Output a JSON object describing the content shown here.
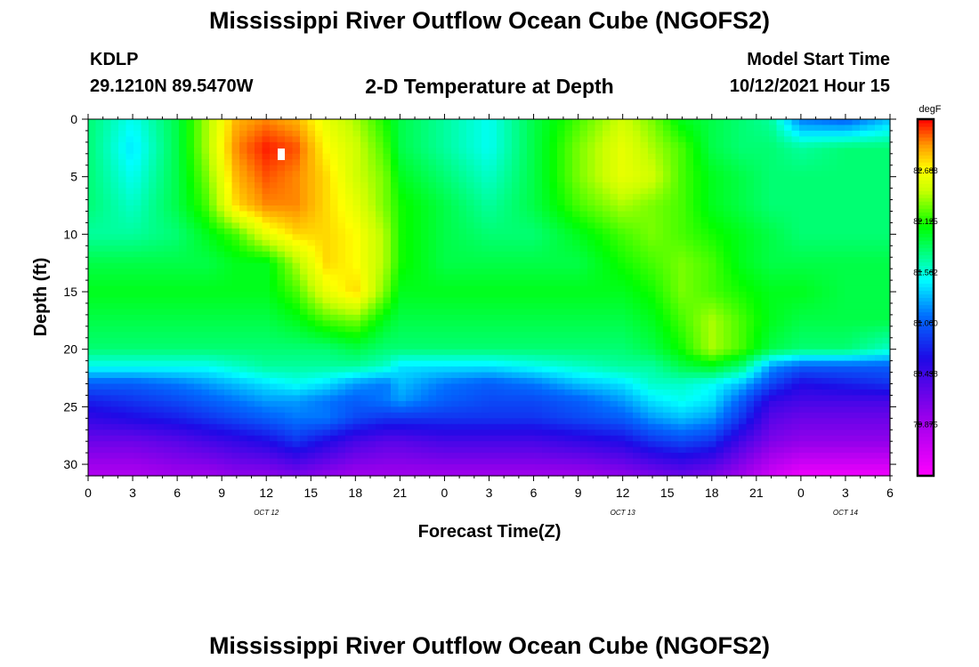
{
  "header": {
    "title": "Mississippi River Outflow Ocean Cube (NGOFS2)",
    "station": "KDLP",
    "coords": "29.1210N  89.5470W",
    "subtitle": "2-D Temperature at Depth",
    "start_label": "Model Start Time",
    "start_value": "10/12/2021 Hour 15"
  },
  "footer": {
    "title": "Mississippi River Outflow Ocean Cube (NGOFS2)"
  },
  "chart_data": {
    "type": "heatmap",
    "title": "2-D Temperature at Depth",
    "xlabel": "Forecast Time(Z)",
    "ylabel": "Depth (ft)",
    "x_unit": "hours (Z)",
    "xlim": [
      0,
      54
    ],
    "ylim": [
      0,
      31
    ],
    "y_reversed": true,
    "x_ticks": [
      {
        "h": 0,
        "label": "0"
      },
      {
        "h": 3,
        "label": "3"
      },
      {
        "h": 6,
        "label": "6"
      },
      {
        "h": 9,
        "label": "9"
      },
      {
        "h": 12,
        "label": "12"
      },
      {
        "h": 15,
        "label": "15"
      },
      {
        "h": 18,
        "label": "18"
      },
      {
        "h": 21,
        "label": "21"
      },
      {
        "h": 24,
        "label": "0"
      },
      {
        "h": 27,
        "label": "3"
      },
      {
        "h": 30,
        "label": "6"
      },
      {
        "h": 33,
        "label": "9"
      },
      {
        "h": 36,
        "label": "12"
      },
      {
        "h": 39,
        "label": "15"
      },
      {
        "h": 42,
        "label": "18"
      },
      {
        "h": 45,
        "label": "21"
      },
      {
        "h": 48,
        "label": "0"
      },
      {
        "h": 51,
        "label": "3"
      },
      {
        "h": 54,
        "label": "6"
      }
    ],
    "date_labels": [
      {
        "h": 12,
        "label": "OCT 12"
      },
      {
        "h": 36,
        "label": "OCT 13"
      },
      {
        "h": 51,
        "label": "OCT 14"
      }
    ],
    "y_ticks": [
      0,
      5,
      10,
      15,
      20,
      25,
      30
    ],
    "colorbar": {
      "unit": "degF",
      "min": 79.3,
      "max": 83.25,
      "tick_labels": [
        "82.688",
        "82.125",
        "81.562",
        "81.000",
        "80.438",
        "79.875"
      ],
      "tick_values": [
        82.688,
        82.125,
        81.562,
        81.0,
        80.438,
        79.875
      ]
    },
    "depths_ft": [
      0,
      2.5,
      5,
      7.5,
      10,
      12.5,
      15,
      17.5,
      20,
      21.5,
      23,
      24.5,
      26,
      28,
      31
    ],
    "times_h": [
      0,
      3,
      6,
      8,
      10,
      12,
      14,
      16,
      18,
      20,
      21,
      24,
      27,
      30,
      33,
      36,
      38,
      40,
      42,
      44,
      46,
      48,
      51,
      54
    ],
    "values_degF": [
      [
        81.8,
        81.5,
        81.9,
        82.4,
        82.9,
        83.0,
        82.9,
        82.6,
        82.4,
        82.1,
        81.9,
        81.7,
        81.5,
        81.9,
        82.2,
        82.5,
        82.3,
        82.0,
        81.9,
        81.8,
        81.7,
        81.1,
        81.0,
        81.3
      ],
      [
        81.8,
        81.4,
        81.9,
        82.4,
        83.0,
        83.2,
        83.1,
        82.7,
        82.5,
        82.2,
        81.9,
        81.7,
        81.5,
        81.9,
        82.3,
        82.6,
        82.4,
        82.2,
        81.9,
        81.8,
        81.8,
        81.7,
        81.8,
        81.8
      ],
      [
        81.8,
        81.5,
        81.9,
        82.3,
        82.9,
        83.1,
        83.0,
        82.8,
        82.5,
        82.3,
        82.0,
        81.8,
        81.6,
        81.9,
        82.3,
        82.6,
        82.5,
        82.2,
        82.0,
        81.9,
        81.8,
        81.8,
        81.8,
        81.8
      ],
      [
        81.8,
        81.6,
        81.9,
        82.2,
        82.8,
        83.0,
        83.0,
        82.8,
        82.6,
        82.3,
        82.1,
        81.9,
        81.7,
        81.9,
        82.2,
        82.4,
        82.3,
        82.2,
        82.0,
        81.9,
        81.8,
        81.8,
        81.8,
        81.8
      ],
      [
        81.7,
        81.7,
        81.8,
        82.0,
        82.2,
        82.6,
        82.8,
        82.8,
        82.7,
        82.4,
        82.1,
        81.9,
        81.8,
        81.8,
        82.0,
        82.2,
        82.3,
        82.2,
        82.1,
        82.0,
        81.9,
        81.8,
        81.8,
        81.8
      ],
      [
        81.9,
        81.9,
        81.9,
        81.9,
        82.0,
        82.0,
        82.4,
        82.8,
        82.7,
        82.4,
        82.1,
        81.9,
        81.9,
        81.9,
        81.9,
        82.1,
        82.2,
        82.3,
        82.2,
        82.0,
        81.9,
        81.9,
        81.9,
        81.9
      ],
      [
        82.0,
        82.0,
        82.0,
        82.0,
        82.0,
        82.0,
        82.2,
        82.6,
        82.8,
        82.3,
        82.0,
        82.0,
        82.0,
        82.0,
        82.0,
        82.0,
        82.1,
        82.3,
        82.2,
        82.1,
        82.0,
        82.0,
        81.9,
        81.9
      ],
      [
        81.9,
        81.9,
        81.9,
        81.9,
        81.9,
        81.9,
        82.0,
        82.2,
        82.3,
        82.0,
        81.9,
        81.9,
        81.9,
        81.9,
        81.9,
        81.9,
        82.0,
        82.2,
        82.4,
        82.2,
        82.0,
        81.9,
        81.9,
        81.9
      ],
      [
        81.8,
        81.8,
        81.8,
        81.8,
        81.8,
        81.8,
        81.8,
        81.8,
        81.9,
        81.8,
        81.8,
        81.8,
        81.8,
        81.8,
        81.8,
        81.8,
        81.9,
        82.1,
        82.4,
        82.2,
        81.9,
        81.8,
        81.8,
        81.6
      ],
      [
        81.5,
        81.5,
        81.5,
        81.5,
        81.6,
        81.7,
        81.7,
        81.7,
        81.7,
        81.6,
        81.4,
        81.4,
        81.4,
        81.5,
        81.6,
        81.7,
        81.7,
        81.9,
        82.0,
        81.8,
        81.2,
        81.0,
        81.0,
        81.0
      ],
      [
        81.0,
        81.0,
        81.1,
        81.2,
        81.3,
        81.4,
        81.5,
        81.4,
        81.2,
        81.1,
        81.3,
        81.1,
        81.0,
        81.1,
        81.3,
        81.4,
        81.6,
        81.6,
        81.5,
        81.3,
        80.9,
        80.6,
        80.7,
        80.8
      ],
      [
        80.7,
        80.8,
        80.9,
        81.0,
        81.1,
        81.2,
        81.2,
        81.1,
        81.0,
        81.1,
        81.2,
        81.0,
        80.9,
        80.9,
        81.0,
        81.2,
        81.4,
        81.5,
        81.4,
        81.0,
        80.5,
        80.4,
        80.4,
        80.4
      ],
      [
        80.5,
        80.6,
        80.7,
        80.8,
        80.9,
        81.0,
        81.1,
        81.1,
        80.9,
        80.8,
        80.8,
        80.8,
        80.8,
        80.8,
        80.9,
        81.0,
        81.2,
        81.3,
        81.2,
        80.8,
        80.3,
        80.2,
        80.2,
        80.2
      ],
      [
        80.2,
        80.2,
        80.3,
        80.4,
        80.5,
        80.6,
        80.8,
        80.6,
        80.4,
        80.3,
        80.3,
        80.4,
        80.4,
        80.4,
        80.5,
        80.6,
        80.8,
        80.9,
        80.8,
        80.4,
        80.1,
        80.0,
        80.0,
        80.0
      ],
      [
        79.8,
        79.8,
        79.9,
        79.9,
        80.0,
        80.0,
        80.1,
        80.0,
        79.9,
        79.9,
        79.9,
        79.9,
        79.9,
        79.9,
        79.9,
        80.0,
        80.1,
        80.2,
        80.1,
        79.9,
        79.6,
        79.4,
        79.4,
        79.4
      ]
    ]
  }
}
